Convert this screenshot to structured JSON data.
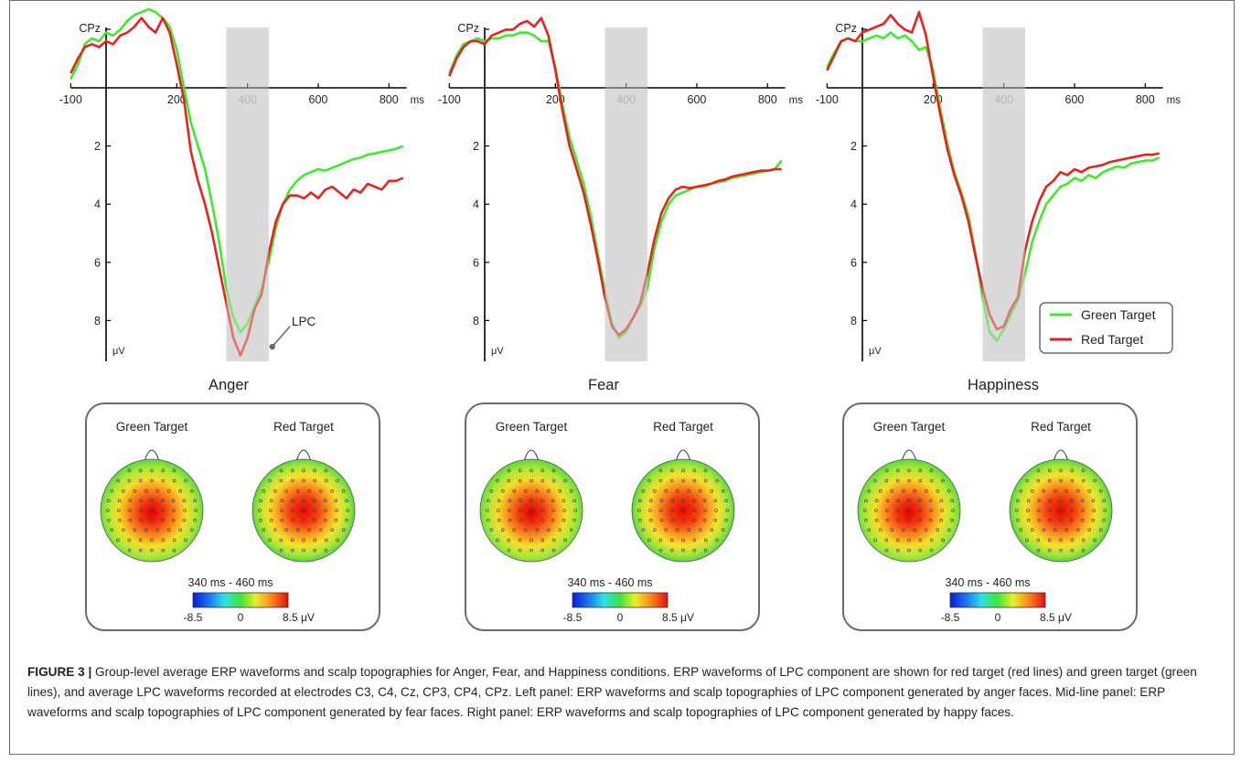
{
  "figure_label": "FIGURE 3 |",
  "caption_text": " Group-level average ERP waveforms and scalp topographies for Anger, Fear, and Happiness conditions. ERP waveforms of LPC component are shown for red target (red lines) and green target (green lines), and average LPC waveforms recorded at electrodes C3, C4, Cz, CP3, CP4, CPz. Left panel: ERP waveforms and scalp topographies of LPC component generated by anger faces. Mid-line panel: ERP waveforms and scalp topographies of LPC component generated by fear faces. Right panel: ERP waveforms and scalp topographies of LPC component generated by happy faces.",
  "colors": {
    "green": "#3cec2c",
    "red": "#e8211f",
    "window": "#dcdcdc",
    "box": "#6b6b6b"
  },
  "topo": {
    "labels": [
      "Green Target",
      "Red Target"
    ],
    "window_label": "340 ms - 460 ms",
    "scale_ticks": [
      "-8.5",
      "0",
      "8.5 μV"
    ]
  },
  "annotation": "LPC",
  "chart_data": [
    {
      "type": "line",
      "title": "Anger",
      "channel": "CPz",
      "x_unit": "ms",
      "y_unit": "μV",
      "xlim": [
        -100,
        850
      ],
      "ylim": [
        -2.8,
        9.5
      ],
      "x_ticks": [
        "-100",
        "200",
        "400",
        "600",
        "800"
      ],
      "y_ticks": [
        "2",
        "4",
        "6",
        "8"
      ],
      "window": [
        340,
        460
      ],
      "annotation_present": true,
      "series": [
        {
          "name": "Green Target",
          "color": "#3cec2c",
          "x": [
            -100,
            -80,
            -60,
            -40,
            -20,
            0,
            20,
            40,
            60,
            80,
            100,
            120,
            140,
            160,
            180,
            200,
            220,
            240,
            260,
            280,
            300,
            320,
            340,
            360,
            380,
            400,
            420,
            440,
            460,
            480,
            500,
            520,
            540,
            560,
            580,
            600,
            620,
            640,
            660,
            680,
            700,
            720,
            740,
            760,
            780,
            800,
            820,
            840
          ],
          "y": [
            -0.3,
            -0.8,
            -1.5,
            -1.7,
            -1.6,
            -1.9,
            -1.8,
            -2.0,
            -2.3,
            -2.5,
            -2.6,
            -2.7,
            -2.6,
            -2.4,
            -2.1,
            -1.3,
            0.0,
            1.2,
            2.0,
            2.8,
            4.0,
            5.3,
            6.9,
            7.9,
            8.4,
            8.1,
            7.5,
            6.9,
            6.0,
            4.8,
            4.0,
            3.5,
            3.2,
            3.0,
            2.9,
            2.8,
            2.85,
            2.75,
            2.65,
            2.55,
            2.45,
            2.4,
            2.3,
            2.25,
            2.2,
            2.15,
            2.1,
            2.0
          ]
        },
        {
          "name": "Red Target",
          "color": "#e8211f",
          "x": [
            -100,
            -80,
            -60,
            -40,
            -20,
            0,
            20,
            40,
            60,
            80,
            100,
            120,
            140,
            160,
            180,
            200,
            220,
            240,
            260,
            280,
            300,
            320,
            340,
            360,
            380,
            400,
            420,
            440,
            460,
            480,
            500,
            520,
            540,
            560,
            580,
            600,
            620,
            640,
            660,
            680,
            700,
            720,
            740,
            760,
            780,
            800,
            820,
            840
          ],
          "y": [
            -0.5,
            -1.0,
            -1.4,
            -1.5,
            -1.4,
            -1.6,
            -1.5,
            -1.8,
            -1.9,
            -2.1,
            -2.4,
            -2.1,
            -1.9,
            -2.4,
            -1.9,
            -0.8,
            0.4,
            2.2,
            3.2,
            4.0,
            5.0,
            6.2,
            7.4,
            8.6,
            9.2,
            8.6,
            7.6,
            7.1,
            5.7,
            4.6,
            4.0,
            3.7,
            3.7,
            3.8,
            3.6,
            3.8,
            3.5,
            3.4,
            3.6,
            3.8,
            3.5,
            3.6,
            3.3,
            3.4,
            3.5,
            3.2,
            3.2,
            3.1
          ]
        }
      ]
    },
    {
      "type": "line",
      "title": "Fear",
      "channel": "CPz",
      "x_unit": "ms",
      "y_unit": "μV",
      "xlim": [
        -100,
        850
      ],
      "ylim": [
        -2.8,
        9.5
      ],
      "x_ticks": [
        "-100",
        "200",
        "400",
        "600",
        "800"
      ],
      "y_ticks": [
        "2",
        "4",
        "6",
        "8"
      ],
      "window": [
        340,
        460
      ],
      "annotation_present": false,
      "series": [
        {
          "name": "Green Target",
          "color": "#3cec2c",
          "x": [
            -100,
            -80,
            -60,
            -40,
            -20,
            0,
            20,
            40,
            60,
            80,
            100,
            120,
            140,
            160,
            180,
            200,
            220,
            240,
            260,
            280,
            300,
            320,
            340,
            360,
            380,
            400,
            420,
            440,
            460,
            480,
            500,
            520,
            540,
            560,
            580,
            600,
            620,
            640,
            660,
            680,
            700,
            720,
            740,
            760,
            780,
            800,
            820,
            840
          ],
          "y": [
            -0.5,
            -1.1,
            -1.5,
            -1.6,
            -1.7,
            -1.6,
            -1.7,
            -1.7,
            -1.8,
            -1.8,
            -1.9,
            -1.9,
            -1.8,
            -1.6,
            -1.6,
            -0.7,
            0.6,
            1.7,
            2.5,
            3.3,
            4.4,
            5.7,
            7.0,
            8.1,
            8.6,
            8.4,
            7.9,
            7.5,
            6.9,
            5.5,
            4.6,
            4.0,
            3.7,
            3.6,
            3.5,
            3.4,
            3.4,
            3.3,
            3.25,
            3.2,
            3.1,
            3.05,
            3.0,
            2.95,
            2.9,
            2.85,
            2.8,
            2.5
          ]
        },
        {
          "name": "Red Target",
          "color": "#e8211f",
          "x": [
            -100,
            -80,
            -60,
            -40,
            -20,
            0,
            20,
            40,
            60,
            80,
            100,
            120,
            140,
            160,
            180,
            200,
            220,
            240,
            260,
            280,
            300,
            320,
            340,
            360,
            380,
            400,
            420,
            440,
            460,
            480,
            500,
            520,
            540,
            560,
            580,
            600,
            620,
            640,
            660,
            680,
            700,
            720,
            740,
            760,
            780,
            800,
            820,
            840
          ],
          "y": [
            -0.4,
            -1.0,
            -1.4,
            -1.6,
            -1.6,
            -1.5,
            -1.8,
            -1.9,
            -2.0,
            -2.0,
            -2.2,
            -2.3,
            -2.1,
            -2.4,
            -1.8,
            -0.6,
            0.8,
            2.0,
            2.8,
            3.6,
            4.7,
            5.9,
            7.2,
            8.2,
            8.5,
            8.3,
            7.9,
            7.4,
            6.4,
            5.2,
            4.3,
            3.8,
            3.5,
            3.4,
            3.45,
            3.4,
            3.35,
            3.3,
            3.2,
            3.15,
            3.05,
            3.0,
            2.95,
            2.9,
            2.85,
            2.85,
            2.8,
            2.8
          ]
        }
      ]
    },
    {
      "type": "line",
      "title": "Happiness",
      "channel": "CPz",
      "x_unit": "ms",
      "y_unit": "μV",
      "xlim": [
        -100,
        850
      ],
      "ylim": [
        -2.8,
        9.5
      ],
      "x_ticks": [
        "-100",
        "200",
        "400",
        "600",
        "800"
      ],
      "y_ticks": [
        "2",
        "4",
        "6",
        "8"
      ],
      "window": [
        340,
        460
      ],
      "annotation_present": false,
      "series": [
        {
          "name": "Green Target",
          "color": "#3cec2c",
          "x": [
            -100,
            -80,
            -60,
            -40,
            -20,
            0,
            20,
            40,
            60,
            80,
            100,
            120,
            140,
            160,
            180,
            200,
            220,
            240,
            260,
            280,
            300,
            320,
            340,
            360,
            380,
            400,
            420,
            440,
            460,
            480,
            500,
            520,
            540,
            560,
            580,
            600,
            620,
            640,
            660,
            680,
            700,
            720,
            740,
            760,
            780,
            800,
            820,
            840
          ],
          "y": [
            -0.7,
            -1.2,
            -1.6,
            -1.7,
            -1.6,
            -1.6,
            -1.7,
            -1.8,
            -1.7,
            -1.9,
            -1.7,
            -1.8,
            -1.6,
            -1.3,
            -1.4,
            -0.6,
            0.7,
            1.9,
            2.9,
            3.6,
            4.4,
            5.7,
            7.2,
            8.4,
            8.7,
            8.3,
            7.8,
            7.3,
            6.4,
            5.3,
            4.6,
            4.0,
            3.7,
            3.4,
            3.3,
            3.1,
            3.2,
            3.0,
            3.1,
            2.9,
            2.8,
            2.7,
            2.75,
            2.6,
            2.55,
            2.5,
            2.5,
            2.4
          ]
        },
        {
          "name": "Red Target",
          "color": "#e8211f",
          "x": [
            -100,
            -80,
            -60,
            -40,
            -20,
            0,
            20,
            40,
            60,
            80,
            100,
            120,
            140,
            160,
            180,
            200,
            220,
            240,
            260,
            280,
            300,
            320,
            340,
            360,
            380,
            400,
            420,
            440,
            460,
            480,
            500,
            520,
            540,
            560,
            580,
            600,
            620,
            640,
            660,
            680,
            700,
            720,
            740,
            760,
            780,
            800,
            820,
            840
          ],
          "y": [
            -0.6,
            -1.1,
            -1.6,
            -1.7,
            -1.6,
            -1.9,
            -2.0,
            -2.1,
            -2.2,
            -2.5,
            -2.2,
            -2.0,
            -1.9,
            -2.6,
            -1.8,
            -0.4,
            0.9,
            2.1,
            3.0,
            3.7,
            4.6,
            5.8,
            6.9,
            7.8,
            8.3,
            8.2,
            7.6,
            7.2,
            5.6,
            4.6,
            3.9,
            3.4,
            3.2,
            2.9,
            3.0,
            2.8,
            2.9,
            2.75,
            2.7,
            2.65,
            2.55,
            2.5,
            2.45,
            2.4,
            2.35,
            2.3,
            2.3,
            2.25
          ]
        }
      ]
    }
  ]
}
